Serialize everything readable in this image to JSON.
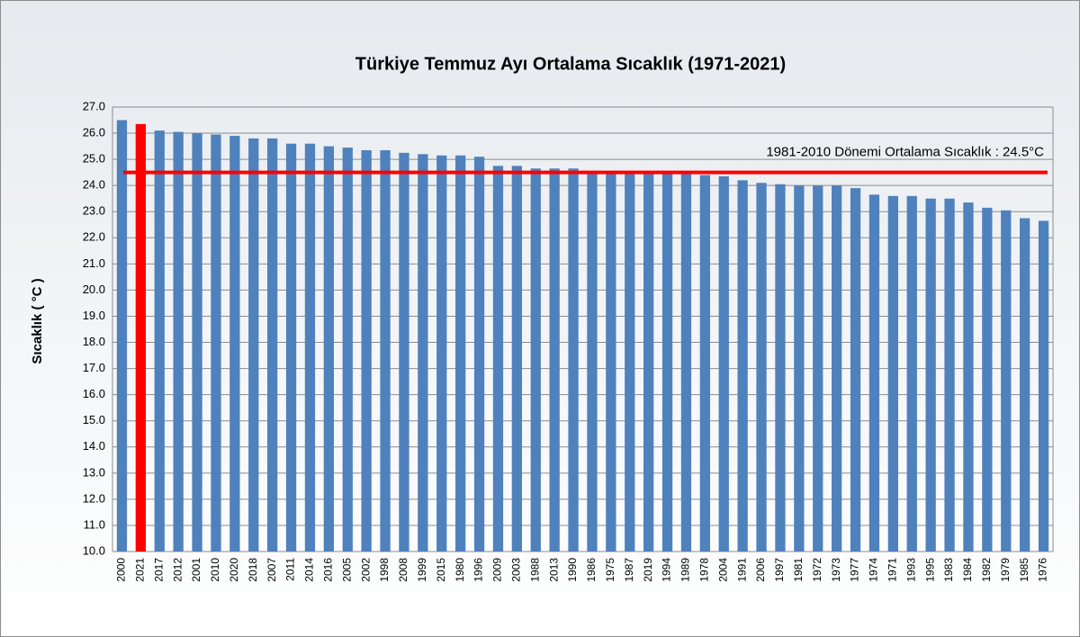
{
  "chart_data": {
    "type": "bar",
    "title": "Türkiye Temmuz Ayı Ortalama Sıcaklık (1971-2021)",
    "y_label": "Sıcaklık ( °C )",
    "categories": [
      "2000",
      "2021",
      "2017",
      "2012",
      "2001",
      "2010",
      "2020",
      "2018",
      "2007",
      "2011",
      "2014",
      "2016",
      "2005",
      "2002",
      "1998",
      "2008",
      "1999",
      "2015",
      "1980",
      "1996",
      "2009",
      "2003",
      "1988",
      "2013",
      "1990",
      "1986",
      "1975",
      "1987",
      "2019",
      "1994",
      "1989",
      "1978",
      "2004",
      "1991",
      "2006",
      "1997",
      "1981",
      "1972",
      "1973",
      "1977",
      "1974",
      "1971",
      "1993",
      "1995",
      "1983",
      "1984",
      "1982",
      "1979",
      "1985",
      "1976"
    ],
    "values": [
      26.5,
      26.35,
      26.1,
      26.05,
      26.0,
      25.95,
      25.9,
      25.8,
      25.8,
      25.6,
      25.6,
      25.5,
      25.45,
      25.35,
      25.35,
      25.25,
      25.2,
      25.15,
      25.15,
      25.1,
      24.75,
      24.75,
      24.65,
      24.65,
      24.65,
      24.55,
      24.5,
      24.5,
      24.5,
      24.5,
      24.45,
      24.4,
      24.35,
      24.2,
      24.1,
      24.05,
      24.0,
      24.0,
      24.0,
      23.9,
      23.65,
      23.6,
      23.6,
      23.5,
      23.5,
      23.35,
      23.15,
      23.05,
      22.75,
      22.65
    ],
    "colors": [
      "#4f81bd",
      "#ff0000",
      "#4f81bd",
      "#4f81bd",
      "#4f81bd",
      "#4f81bd",
      "#4f81bd",
      "#4f81bd",
      "#4f81bd",
      "#4f81bd",
      "#4f81bd",
      "#4f81bd",
      "#4f81bd",
      "#4f81bd",
      "#4f81bd",
      "#4f81bd",
      "#4f81bd",
      "#4f81bd",
      "#4f81bd",
      "#4f81bd",
      "#4f81bd",
      "#4f81bd",
      "#4f81bd",
      "#4f81bd",
      "#4f81bd",
      "#4f81bd",
      "#4f81bd",
      "#4f81bd",
      "#4f81bd",
      "#4f81bd",
      "#4f81bd",
      "#4f81bd",
      "#4f81bd",
      "#4f81bd",
      "#4f81bd",
      "#4f81bd",
      "#4f81bd",
      "#4f81bd",
      "#4f81bd",
      "#4f81bd",
      "#4f81bd",
      "#4f81bd",
      "#4f81bd",
      "#4f81bd",
      "#4f81bd",
      "#4f81bd",
      "#4f81bd",
      "#4f81bd",
      "#4f81bd",
      "#4f81bd"
    ],
    "ylim": [
      10,
      27
    ],
    "yticks": [
      {
        "value": 10,
        "label": "10.0"
      },
      {
        "value": 11,
        "label": "11.0"
      },
      {
        "value": 12,
        "label": "12.0"
      },
      {
        "value": 13,
        "label": "13.0"
      },
      {
        "value": 14,
        "label": "14.0"
      },
      {
        "value": 15,
        "label": "15.0"
      },
      {
        "value": 16,
        "label": "16.0"
      },
      {
        "value": 17,
        "label": "17.0"
      },
      {
        "value": 18,
        "label": "18.0"
      },
      {
        "value": 19,
        "label": "19.0"
      },
      {
        "value": 20,
        "label": "20.0"
      },
      {
        "value": 21,
        "label": "21.0"
      },
      {
        "value": 22,
        "label": "22.0"
      },
      {
        "value": 23,
        "label": "23.0"
      },
      {
        "value": 24,
        "label": "24.0"
      },
      {
        "value": 25,
        "label": "25.0"
      },
      {
        "value": 26,
        "label": "26.0"
      },
      {
        "value": 27,
        "label": "27.0"
      }
    ],
    "grid": true,
    "reference_line": {
      "value": 24.5,
      "label": "1981-2010 Dönemi  Ortalama Sıcaklık : 24.5°C",
      "color": "#ff0000"
    }
  }
}
